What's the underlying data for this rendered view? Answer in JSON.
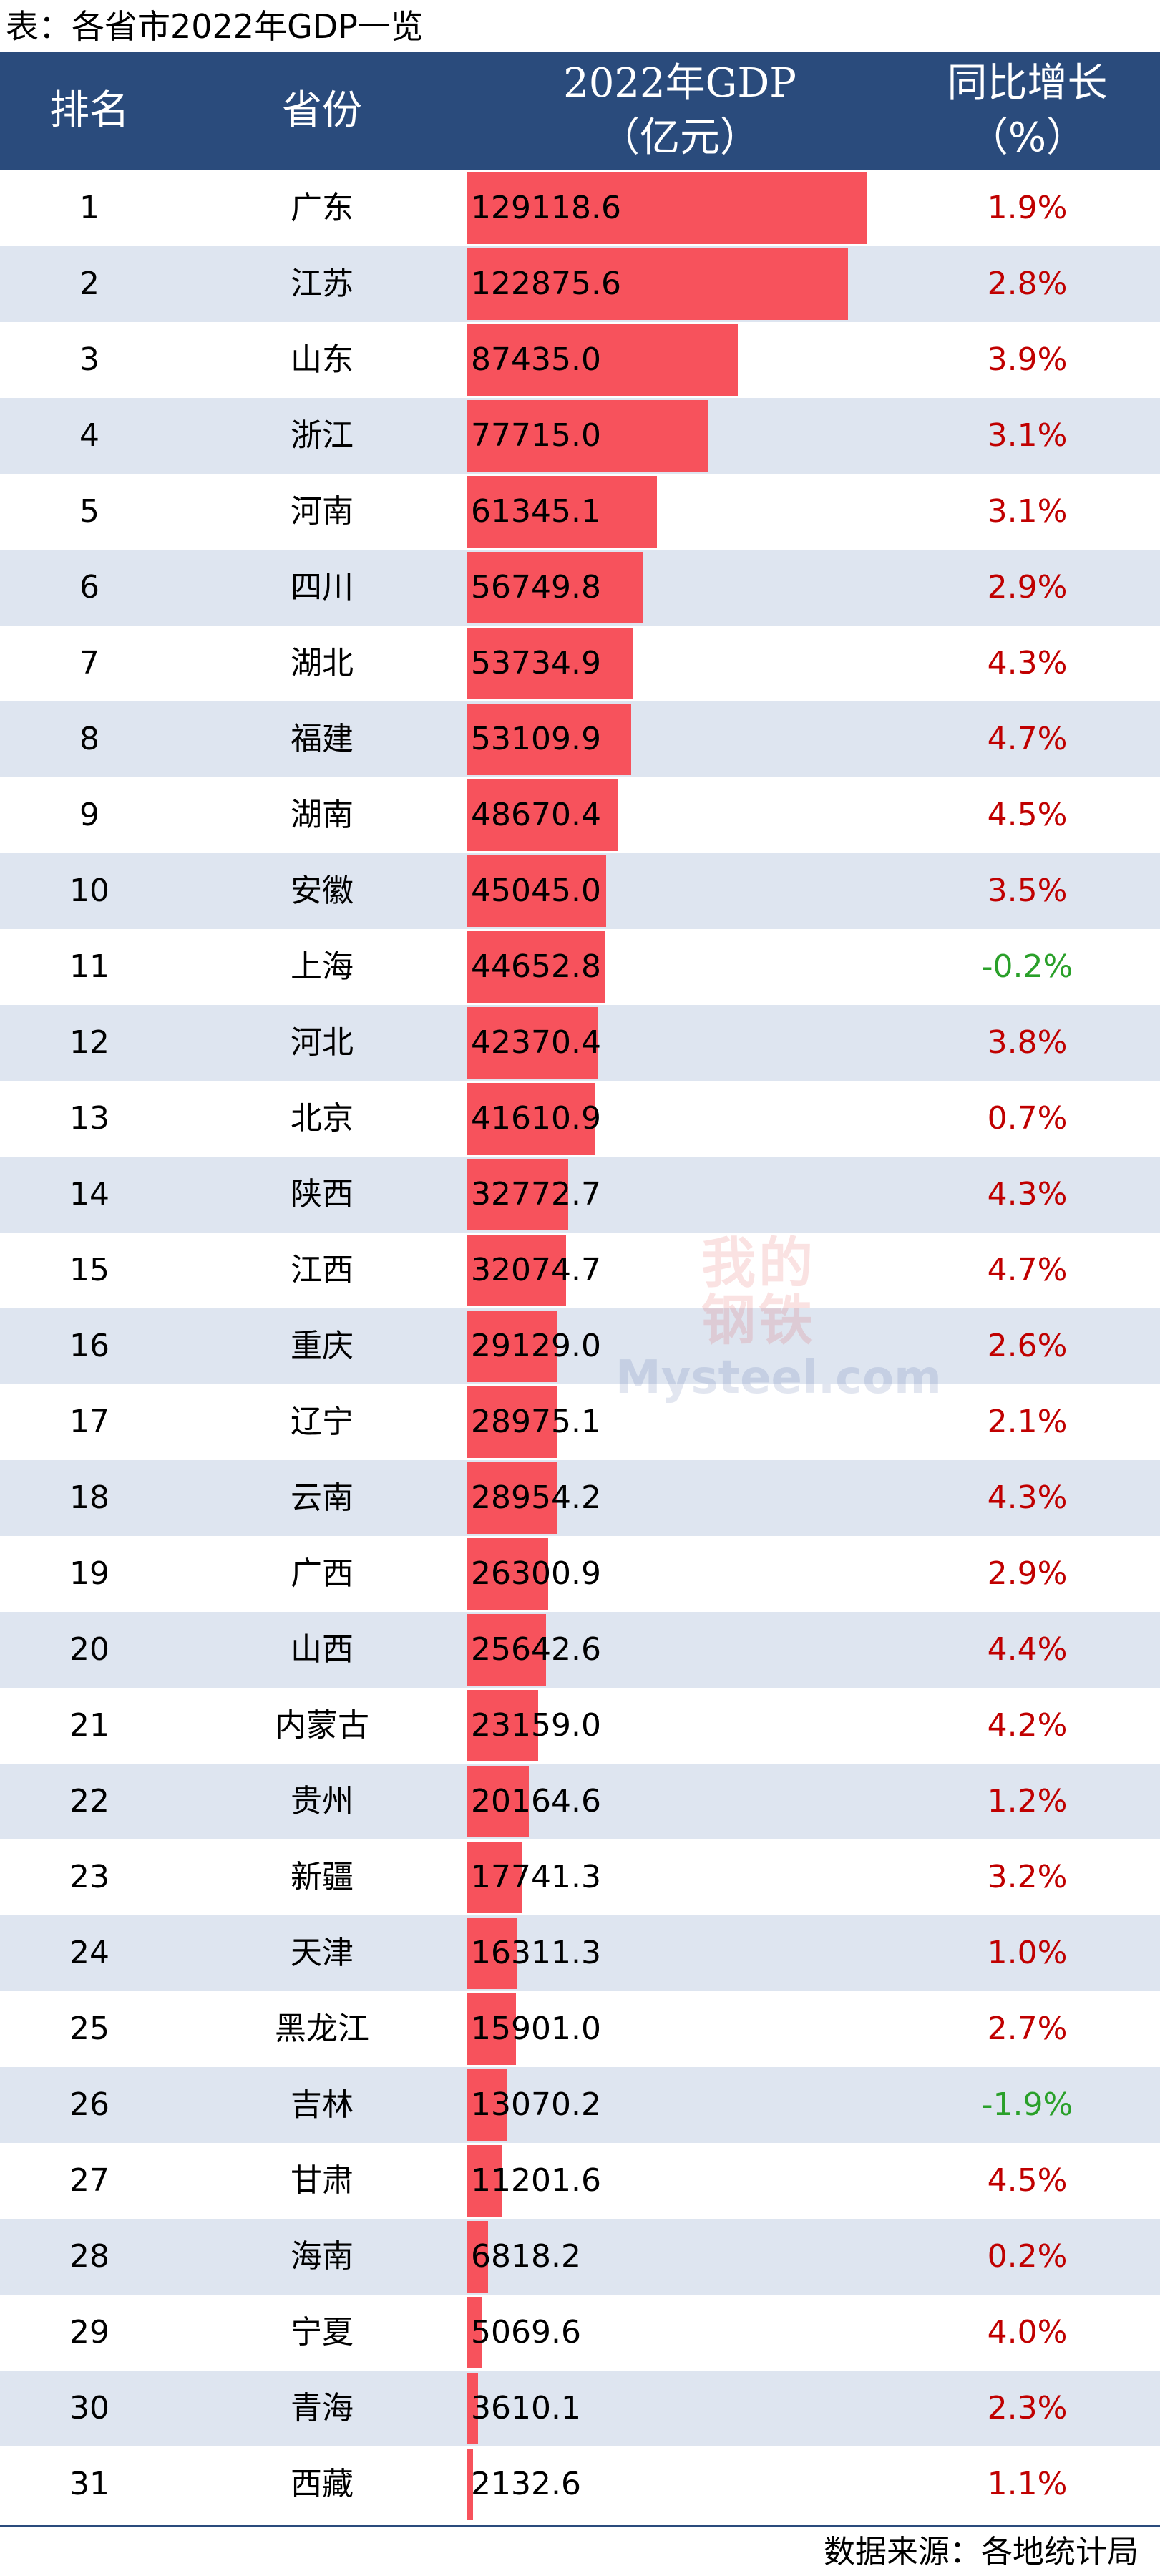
{
  "page": {
    "title": "表：各省市2022年GDP一览",
    "source": "数据来源：各地统计局"
  },
  "header": {
    "rank": "排名",
    "province": "省份",
    "gdp_line1": "2022年GDP",
    "gdp_line2": "（亿元）",
    "growth_line1": "同比增长",
    "growth_line2": "（%）"
  },
  "watermark": {
    "cn": "我的钢铁",
    "en": "Mysteel.com"
  },
  "colors": {
    "header_bg": "#2a4b7c",
    "stripe": "#dee5f0",
    "bar": "#f7525c",
    "positive": "#c00000",
    "negative": "#2aa02a"
  },
  "chart_data": {
    "type": "table",
    "columns": [
      "排名",
      "省份",
      "2022年GDP（亿元）",
      "同比增长（%）"
    ],
    "value_max": 129118.6,
    "rows": [
      {
        "rank": "1",
        "province": "广东",
        "gdp": 129118.6,
        "gdp_label": "129118.6",
        "growth": 1.9,
        "growth_label": "1.9%"
      },
      {
        "rank": "2",
        "province": "江苏",
        "gdp": 122875.6,
        "gdp_label": "122875.6",
        "growth": 2.8,
        "growth_label": "2.8%"
      },
      {
        "rank": "3",
        "province": "山东",
        "gdp": 87435.0,
        "gdp_label": "87435.0",
        "growth": 3.9,
        "growth_label": "3.9%"
      },
      {
        "rank": "4",
        "province": "浙江",
        "gdp": 77715.0,
        "gdp_label": "77715.0",
        "growth": 3.1,
        "growth_label": "3.1%"
      },
      {
        "rank": "5",
        "province": "河南",
        "gdp": 61345.1,
        "gdp_label": "61345.1",
        "growth": 3.1,
        "growth_label": "3.1%"
      },
      {
        "rank": "6",
        "province": "四川",
        "gdp": 56749.8,
        "gdp_label": "56749.8",
        "growth": 2.9,
        "growth_label": "2.9%"
      },
      {
        "rank": "7",
        "province": "湖北",
        "gdp": 53734.9,
        "gdp_label": "53734.9",
        "growth": 4.3,
        "growth_label": "4.3%"
      },
      {
        "rank": "8",
        "province": "福建",
        "gdp": 53109.9,
        "gdp_label": "53109.9",
        "growth": 4.7,
        "growth_label": "4.7%"
      },
      {
        "rank": "9",
        "province": "湖南",
        "gdp": 48670.4,
        "gdp_label": "48670.4",
        "growth": 4.5,
        "growth_label": "4.5%"
      },
      {
        "rank": "10",
        "province": "安徽",
        "gdp": 45045.0,
        "gdp_label": "45045.0",
        "growth": 3.5,
        "growth_label": "3.5%"
      },
      {
        "rank": "11",
        "province": "上海",
        "gdp": 44652.8,
        "gdp_label": "44652.8",
        "growth": -0.2,
        "growth_label": "-0.2%"
      },
      {
        "rank": "12",
        "province": "河北",
        "gdp": 42370.4,
        "gdp_label": "42370.4",
        "growth": 3.8,
        "growth_label": "3.8%"
      },
      {
        "rank": "13",
        "province": "北京",
        "gdp": 41610.9,
        "gdp_label": "41610.9",
        "growth": 0.7,
        "growth_label": "0.7%"
      },
      {
        "rank": "14",
        "province": "陕西",
        "gdp": 32772.7,
        "gdp_label": "32772.7",
        "growth": 4.3,
        "growth_label": "4.3%"
      },
      {
        "rank": "15",
        "province": "江西",
        "gdp": 32074.7,
        "gdp_label": "32074.7",
        "growth": 4.7,
        "growth_label": "4.7%"
      },
      {
        "rank": "16",
        "province": "重庆",
        "gdp": 29129.0,
        "gdp_label": "29129.0",
        "growth": 2.6,
        "growth_label": "2.6%"
      },
      {
        "rank": "17",
        "province": "辽宁",
        "gdp": 28975.1,
        "gdp_label": "28975.1",
        "growth": 2.1,
        "growth_label": "2.1%"
      },
      {
        "rank": "18",
        "province": "云南",
        "gdp": 28954.2,
        "gdp_label": "28954.2",
        "growth": 4.3,
        "growth_label": "4.3%"
      },
      {
        "rank": "19",
        "province": "广西",
        "gdp": 26300.9,
        "gdp_label": "26300.9",
        "growth": 2.9,
        "growth_label": "2.9%"
      },
      {
        "rank": "20",
        "province": "山西",
        "gdp": 25642.6,
        "gdp_label": "25642.6",
        "growth": 4.4,
        "growth_label": "4.4%"
      },
      {
        "rank": "21",
        "province": "内蒙古",
        "gdp": 23159.0,
        "gdp_label": "23159.0",
        "growth": 4.2,
        "growth_label": "4.2%"
      },
      {
        "rank": "22",
        "province": "贵州",
        "gdp": 20164.6,
        "gdp_label": "20164.6",
        "growth": 1.2,
        "growth_label": "1.2%"
      },
      {
        "rank": "23",
        "province": "新疆",
        "gdp": 17741.3,
        "gdp_label": "17741.3",
        "growth": 3.2,
        "growth_label": "3.2%"
      },
      {
        "rank": "24",
        "province": "天津",
        "gdp": 16311.3,
        "gdp_label": "16311.3",
        "growth": 1.0,
        "growth_label": "1.0%"
      },
      {
        "rank": "25",
        "province": "黑龙江",
        "gdp": 15901.0,
        "gdp_label": "15901.0",
        "growth": 2.7,
        "growth_label": "2.7%"
      },
      {
        "rank": "26",
        "province": "吉林",
        "gdp": 13070.2,
        "gdp_label": "13070.2",
        "growth": -1.9,
        "growth_label": "-1.9%"
      },
      {
        "rank": "27",
        "province": "甘肃",
        "gdp": 11201.6,
        "gdp_label": "11201.6",
        "growth": 4.5,
        "growth_label": "4.5%"
      },
      {
        "rank": "28",
        "province": "海南",
        "gdp": 6818.2,
        "gdp_label": "6818.2",
        "growth": 0.2,
        "growth_label": "0.2%"
      },
      {
        "rank": "29",
        "province": "宁夏",
        "gdp": 5069.6,
        "gdp_label": "5069.6",
        "growth": 4.0,
        "growth_label": "4.0%"
      },
      {
        "rank": "30",
        "province": "青海",
        "gdp": 3610.1,
        "gdp_label": "3610.1",
        "growth": 2.3,
        "growth_label": "2.3%"
      },
      {
        "rank": "31",
        "province": "西藏",
        "gdp": 2132.6,
        "gdp_label": "2132.6",
        "growth": 1.1,
        "growth_label": "1.1%"
      }
    ]
  }
}
